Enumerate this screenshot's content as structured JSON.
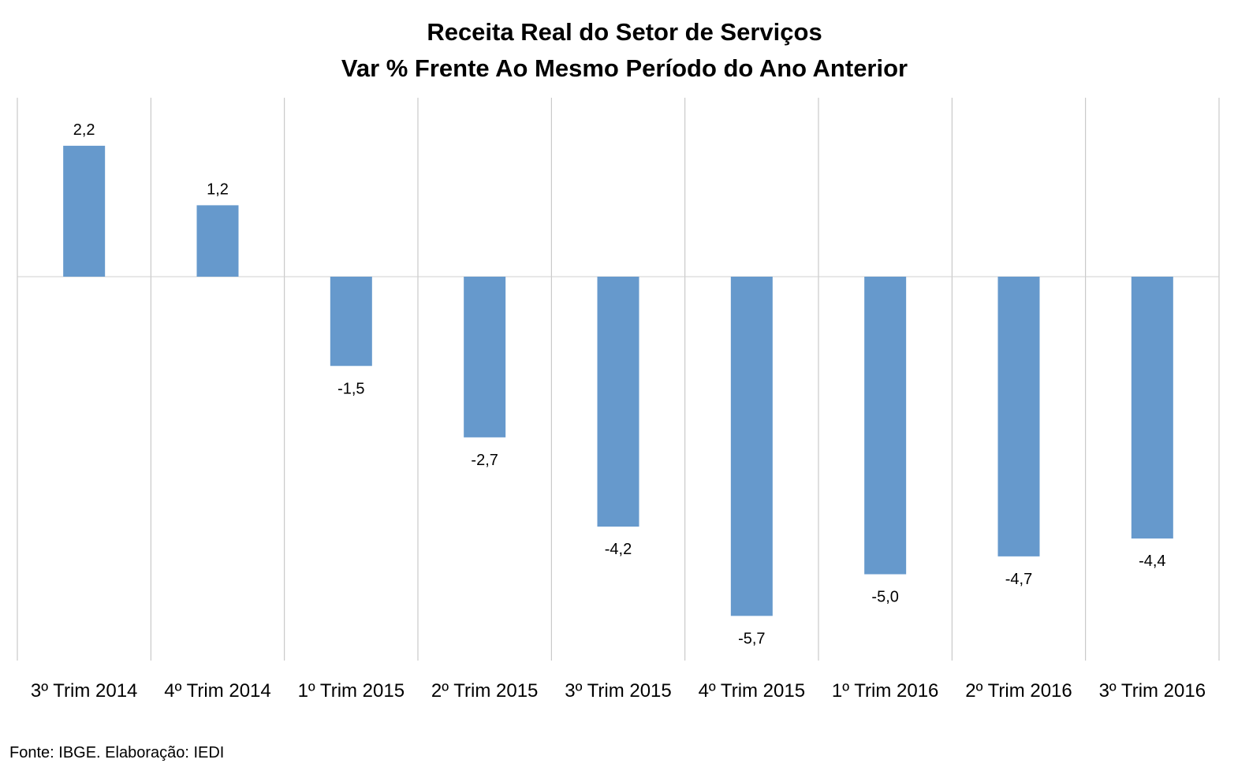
{
  "chart_data": {
    "type": "bar",
    "title_lines": [
      "Receita Real do Setor de Serviços",
      "Var % Frente Ao Mesmo Período do Ano Anterior"
    ],
    "categories": [
      "3º Trim 2014",
      "4º Trim 2014",
      "1º Trim 2015",
      "2º Trim 2015",
      "3º Trim 2015",
      "4º Trim 2015",
      "1º Trim 2016",
      "2º Trim 2016",
      "3º Trim 2016"
    ],
    "values": [
      2.2,
      1.2,
      -1.5,
      -2.7,
      -4.2,
      -5.7,
      -5.0,
      -4.7,
      -4.4
    ],
    "data_labels": [
      "2,2",
      "1,2",
      "-1,5",
      "-2,7",
      "-4,2",
      "-5,7",
      "-5,0",
      "-4,7",
      "-4,4"
    ],
    "ylim": [
      -6.5,
      3.0
    ],
    "bar_color": "#6699cc",
    "grid": "vertical category separators",
    "legend": "none",
    "xlabel": "",
    "ylabel": ""
  },
  "source": "Fonte: IBGE. Elaboração: IEDI"
}
